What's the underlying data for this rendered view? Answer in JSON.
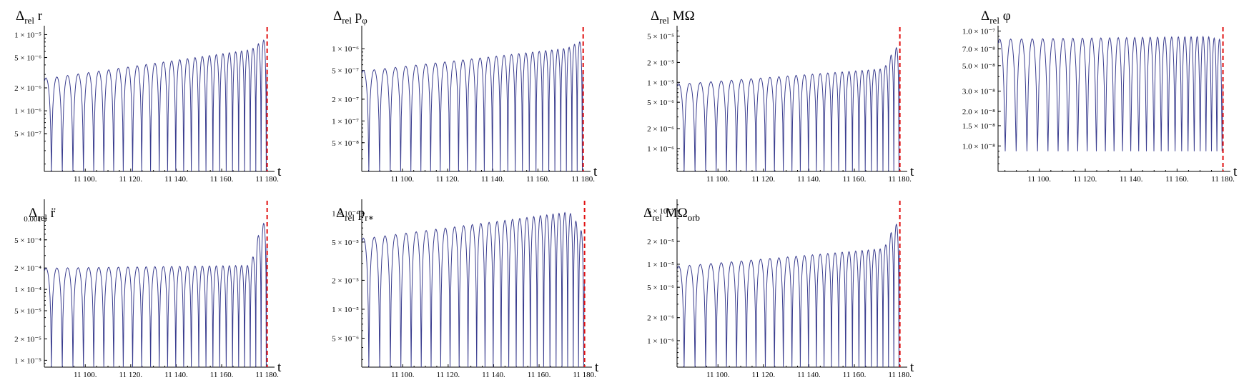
{
  "chart_data": [
    {
      "type": "line",
      "title": {
        "main": "Δ",
        "sub": "rel",
        "rest": " r"
      },
      "xlabel": "t",
      "xlim": [
        11082,
        11182
      ],
      "xticks": [
        11100,
        11120,
        11140,
        11160,
        11180
      ],
      "xtick_labels": [
        "11 100.",
        "11 120.",
        "11 140.",
        "11 160.",
        "11 180."
      ],
      "yscale": "log",
      "ylim": [
        1.6e-07,
        1.2e-05
      ],
      "yticks": [
        1e-05,
        5e-06,
        2e-06,
        1e-06,
        5e-07
      ],
      "ytick_labels": [
        "1 × 10⁻⁵",
        "5 × 10⁻⁶",
        "2 × 10⁻⁶",
        "1 × 10⁻⁶",
        "5 × 10⁻⁷"
      ],
      "series": [
        {
          "period_start": 4.8,
          "period_end": 2.1,
          "amp_start": 2.7e-06,
          "amp_end": 7e-06,
          "final_spike": 1e-05
        }
      ],
      "vline_x": 11180,
      "color": "#3a3d8f",
      "vline_color": "#e01010"
    },
    {
      "type": "line",
      "title": {
        "main": "Δ",
        "sub": "rel",
        "rest": " p",
        "subsym": "φ"
      },
      "xlabel": "t",
      "xlim": [
        11082,
        11182
      ],
      "xticks": [
        11100,
        11120,
        11140,
        11160,
        11180
      ],
      "xtick_labels": [
        "11 100.",
        "11 120.",
        "11 140.",
        "11 160.",
        "11 180."
      ],
      "yscale": "log",
      "ylim": [
        2e-08,
        1.9e-06
      ],
      "yticks": [
        1e-06,
        5e-07,
        2e-07,
        1e-07,
        5e-08
      ],
      "ytick_labels": [
        "1 × 10⁻⁶",
        "5 × 10⁻⁷",
        "2 × 10⁻⁷",
        "1 × 10⁻⁷",
        "5 × 10⁻⁸"
      ],
      "series": [
        {
          "period_start": 4.8,
          "period_end": 2.1,
          "amp_start": 5e-07,
          "amp_end": 1.1e-06,
          "final_spike": 1.4e-06
        }
      ],
      "vline_x": 11180,
      "color": "#3a3d8f",
      "vline_color": "#e01010"
    },
    {
      "type": "line",
      "title": {
        "main": "Δ",
        "sub": "rel",
        "rest": " MΩ"
      },
      "xlabel": "t",
      "xlim": [
        11082,
        11182
      ],
      "xticks": [
        11100,
        11120,
        11140,
        11160,
        11180
      ],
      "xtick_labels": [
        "11 100.",
        "11 120.",
        "11 140.",
        "11 160.",
        "11 180."
      ],
      "yscale": "log",
      "ylim": [
        4.5e-07,
        6.5e-05
      ],
      "yticks": [
        5e-05,
        2e-05,
        1e-05,
        5e-06,
        2e-06,
        1e-06
      ],
      "ytick_labels": [
        "5 × 10⁻⁵",
        "2 × 10⁻⁵",
        "1 × 10⁻⁵",
        "5 × 10⁻⁶",
        "2 × 10⁻⁶",
        "1 × 10⁻⁶"
      ],
      "series": [
        {
          "period_start": 4.8,
          "period_end": 2.1,
          "amp_start": 9.5e-06,
          "amp_end": 1.7e-05,
          "final_spike": 4.8e-05
        }
      ],
      "vline_x": 11180,
      "color": "#3a3d8f",
      "vline_color": "#e01010"
    },
    {
      "type": "line",
      "title": {
        "main": "Δ",
        "sub": "rel",
        "rest": " φ"
      },
      "xlabel": "t",
      "xlim": [
        11082,
        11182
      ],
      "xticks": [
        11100,
        11120,
        11140,
        11160,
        11180
      ],
      "xtick_labels": [
        "11 100.",
        "11 120.",
        "11 140.",
        "11 160.",
        "11 180."
      ],
      "yscale": "log",
      "ylim": [
        6e-09,
        1.05e-07
      ],
      "yticks": [
        1e-07,
        7e-08,
        5e-08,
        3e-08,
        2e-08,
        1.5e-08,
        1e-08
      ],
      "ytick_labels": [
        "1.0 × 10⁻⁷",
        "7.0 × 10⁻⁸",
        "5.0 × 10⁻⁸",
        "3.0 × 10⁻⁸",
        "2.0 × 10⁻⁸",
        "1.5 × 10⁻⁸",
        "1.0 × 10⁻⁸"
      ],
      "series": [
        {
          "period_start": 4.8,
          "period_end": 2.1,
          "amp_start": 8.5e-08,
          "amp_end": 9e-08,
          "final_spike": 8e-08,
          "floor": 9e-09
        }
      ],
      "vline_x": 11180,
      "color": "#3a3d8f",
      "vline_color": "#e01010"
    },
    {
      "type": "line",
      "title": {
        "main": "Δ",
        "sub": "rel",
        "rest": " r̈"
      },
      "xlabel": "t",
      "xlim": [
        11082,
        11182
      ],
      "xticks": [
        11100,
        11120,
        11140,
        11160,
        11180
      ],
      "xtick_labels": [
        "11 100.",
        "11 120.",
        "11 140.",
        "11 160.",
        "11 180."
      ],
      "yscale": "log",
      "ylim": [
        8e-06,
        0.0017
      ],
      "yticks": [
        0.001,
        0.0005,
        0.0002,
        0.0001,
        5e-05,
        2e-05,
        1e-05
      ],
      "ytick_labels": [
        "0.001",
        "5 × 10⁻⁴",
        "2 × 10⁻⁴",
        "1 × 10⁻⁴",
        "5 × 10⁻⁵",
        "2 × 10⁻⁵",
        "1 × 10⁻⁵"
      ],
      "series": [
        {
          "period_start": 4.8,
          "period_end": 2.1,
          "amp_start": 0.0002,
          "amp_end": 0.00022,
          "final_spike": 0.0014
        }
      ],
      "vline_x": 11180,
      "color": "#3a3d8f",
      "vline_color": "#e01010"
    },
    {
      "type": "line",
      "title": {
        "main": "Δ",
        "sub": "rel",
        "rest": " p",
        "subsym": "r∗"
      },
      "xlabel": "t",
      "xlim": [
        11082,
        11182
      ],
      "xticks": [
        11100,
        11120,
        11140,
        11160,
        11180
      ],
      "xtick_labels": [
        "11 100.",
        "11 120.",
        "11 140.",
        "11 160.",
        "11 180."
      ],
      "yscale": "log",
      "ylim": [
        2.5e-06,
        0.00013
      ],
      "yticks": [
        0.0001,
        5e-05,
        2e-05,
        1e-05,
        5e-06
      ],
      "ytick_labels": [
        "1 × 10⁻⁴",
        "5 × 10⁻⁵",
        "2 × 10⁻⁵",
        "1 × 10⁻⁵",
        "5 × 10⁻⁶"
      ],
      "series": [
        {
          "period_start": 4.8,
          "period_end": 2.1,
          "amp_start": 5.5e-05,
          "amp_end": 0.00011,
          "final_spike": 3e-05
        }
      ],
      "vline_x": 11180,
      "color": "#3a3d8f",
      "vline_color": "#e01010"
    },
    {
      "type": "line",
      "title": {
        "main": "Δ",
        "sub": "rel",
        "rest": " MΩ",
        "subsym": "orb"
      },
      "xlabel": "t",
      "xlim": [
        11082,
        11182
      ],
      "xticks": [
        11100,
        11120,
        11140,
        11160,
        11180
      ],
      "xtick_labels": [
        "11 100.",
        "11 120.",
        "11 140.",
        "11 160.",
        "11 180."
      ],
      "yscale": "log",
      "ylim": [
        4.5e-07,
        6.5e-05
      ],
      "yticks": [
        5e-05,
        2e-05,
        1e-05,
        5e-06,
        2e-06,
        1e-06
      ],
      "ytick_labels": [
        "5 × 10⁻⁵",
        "2 × 10⁻⁵",
        "1 × 10⁻⁵",
        "5 × 10⁻⁶",
        "2 × 10⁻⁶",
        "1 × 10⁻⁶"
      ],
      "series": [
        {
          "period_start": 4.8,
          "period_end": 2.1,
          "amp_start": 9.5e-06,
          "amp_end": 1.7e-05,
          "final_spike": 4.8e-05
        }
      ],
      "vline_x": 11180,
      "color": "#3a3d8f",
      "vline_color": "#e01010"
    }
  ]
}
